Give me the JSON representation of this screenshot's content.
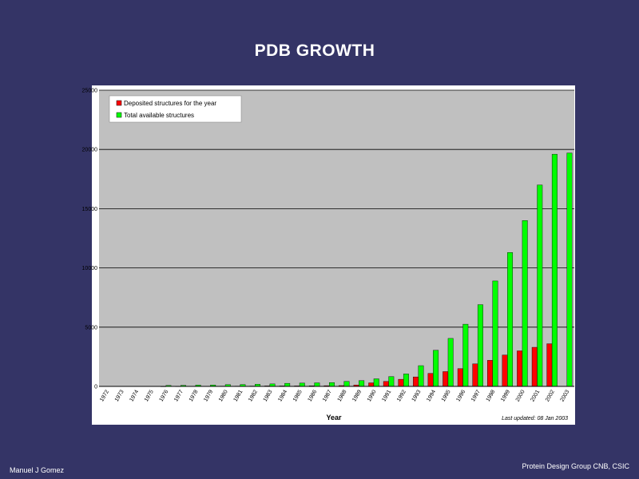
{
  "slide": {
    "title": "PDB GROWTH",
    "author": "Manuel J Gomez",
    "affiliation": "Protein Design Group CNB, CSIC",
    "background": "#343466"
  },
  "chart_data": {
    "type": "bar",
    "xlabel": "Year",
    "ylabel": "",
    "ylim": [
      0,
      25000
    ],
    "yticks": [
      0,
      5000,
      10000,
      15000,
      20000,
      25000
    ],
    "grid": true,
    "legend_position": "top-left",
    "plot_background": "#c0c0c0",
    "note": "Last updated: 08 Jan 2003",
    "categories": [
      "1972",
      "1973",
      "1974",
      "1975",
      "1976",
      "1977",
      "1978",
      "1979",
      "1980",
      "1981",
      "1982",
      "1983",
      "1984",
      "1985",
      "1986",
      "1987",
      "1988",
      "1989",
      "1990",
      "1991",
      "1992",
      "1993",
      "1994",
      "1995",
      "1996",
      "1997",
      "1998",
      "1999",
      "2000",
      "2001",
      "2002",
      "2003"
    ],
    "series": [
      {
        "name": "Deposited structures for the year",
        "color": "#ff0000",
        "values": [
          0,
          0,
          0,
          0,
          5,
          10,
          20,
          15,
          25,
          25,
          30,
          40,
          40,
          40,
          50,
          60,
          70,
          120,
          300,
          420,
          600,
          800,
          1100,
          1250,
          1500,
          1900,
          2200,
          2650,
          3000,
          3300,
          3600,
          0
        ]
      },
      {
        "name": "Total available structures",
        "color": "#00ff00",
        "values": [
          0,
          0,
          0,
          0,
          80,
          90,
          110,
          120,
          150,
          160,
          180,
          210,
          260,
          280,
          300,
          320,
          420,
          490,
          640,
          830,
          1050,
          1750,
          3050,
          4050,
          5250,
          6900,
          8900,
          11300,
          14000,
          17000,
          19600,
          19700
        ]
      }
    ]
  }
}
